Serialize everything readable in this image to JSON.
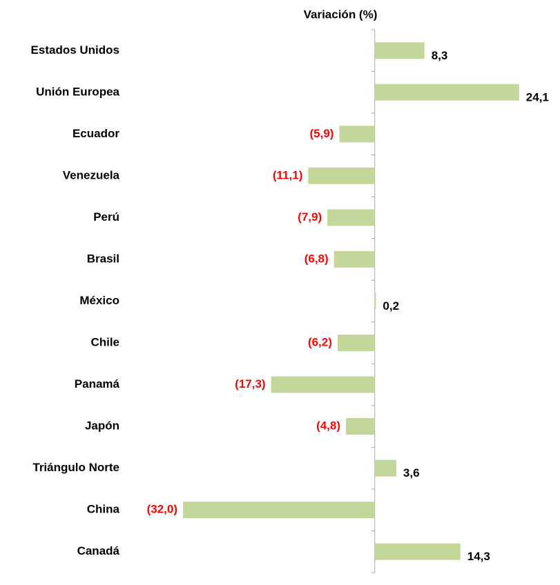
{
  "chart_data": {
    "type": "barh",
    "title": "Variación (%)",
    "categories": [
      "Estados Unidos",
      "Unión Europea",
      "Ecuador",
      "Venezuela",
      "Perú",
      "Brasil",
      "México",
      "Chile",
      "Panamá",
      "Japón",
      "Triángulo Norte",
      "China",
      "Canadá"
    ],
    "values": [
      8.3,
      24.1,
      -5.9,
      -11.1,
      -7.9,
      -6.8,
      0.2,
      -6.2,
      -17.3,
      -4.8,
      3.6,
      -32.0,
      14.3
    ],
    "value_labels": [
      "8,3",
      "24,1",
      "(5,9)",
      "(11,1)",
      "(7,9)",
      "(6,8)",
      "0,2",
      "(6,2)",
      "(17,3)",
      "(4,8)",
      "3,6",
      "(32,0)",
      "14,3"
    ],
    "color": "#c4d79b",
    "label_color": "#000000",
    "negative_label_color": "#ff0000",
    "xlim": [
      -35,
      30
    ]
  }
}
